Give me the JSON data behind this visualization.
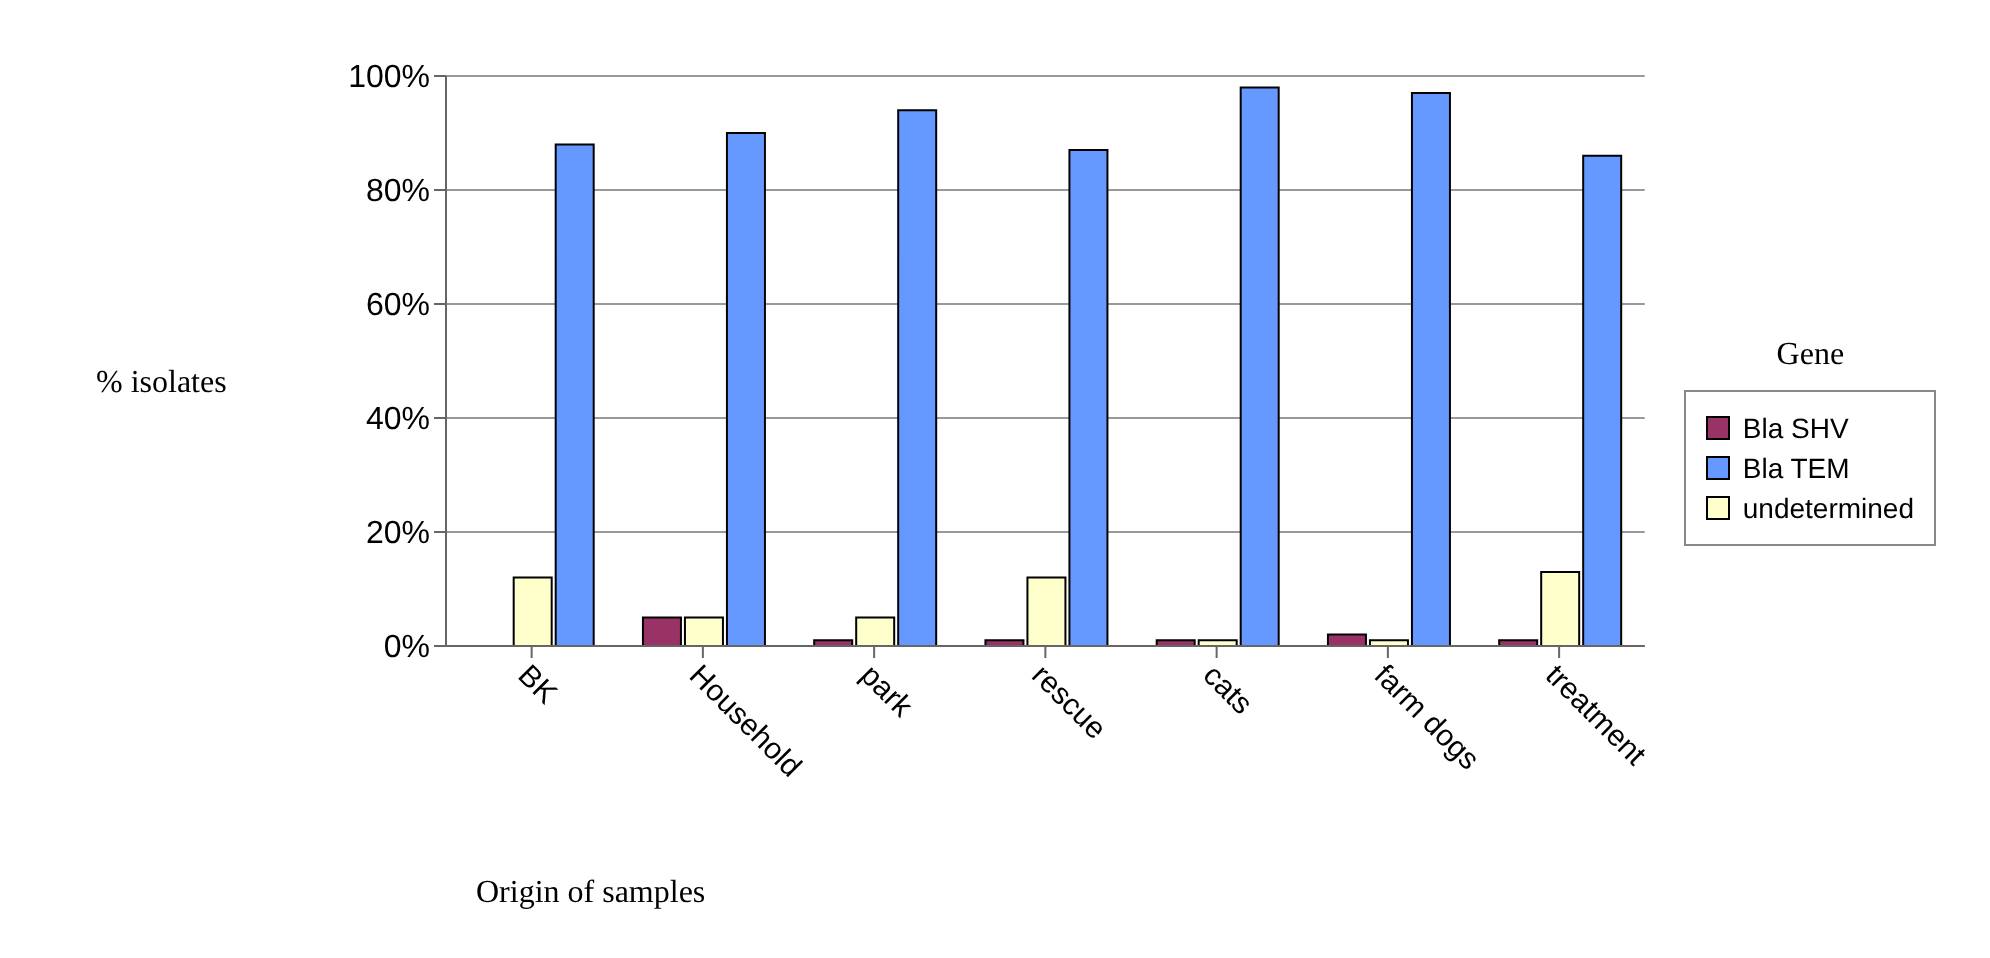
{
  "chart_data": {
    "type": "bar",
    "xlabel": "Origin of samples",
    "ylabel": "% isolates",
    "legend_title": "Gene",
    "categories": [
      "BK",
      "Household",
      "park",
      "rescue",
      "cats",
      "farm dogs",
      "treatment"
    ],
    "series": [
      {
        "name": "Bla SHV",
        "color": "#993366",
        "values": [
          0,
          5,
          1,
          1,
          1,
          2,
          1
        ]
      },
      {
        "name": "undetermined",
        "color": "#ffffcc",
        "values": [
          12,
          5,
          5,
          12,
          1,
          1,
          13
        ]
      },
      {
        "name": "Bla TEM",
        "color": "#6699ff",
        "values": [
          88,
          90,
          94,
          87,
          98,
          97,
          86
        ]
      }
    ],
    "ylim": [
      0,
      100
    ],
    "yticks": [
      {
        "value": 0,
        "label": "0%"
      },
      {
        "value": 20,
        "label": "20%"
      },
      {
        "value": 40,
        "label": "40%"
      },
      {
        "value": 60,
        "label": "60%"
      },
      {
        "value": 80,
        "label": "80%"
      },
      {
        "value": 100,
        "label": "100%"
      }
    ],
    "grid": "y",
    "legend": "right"
  }
}
